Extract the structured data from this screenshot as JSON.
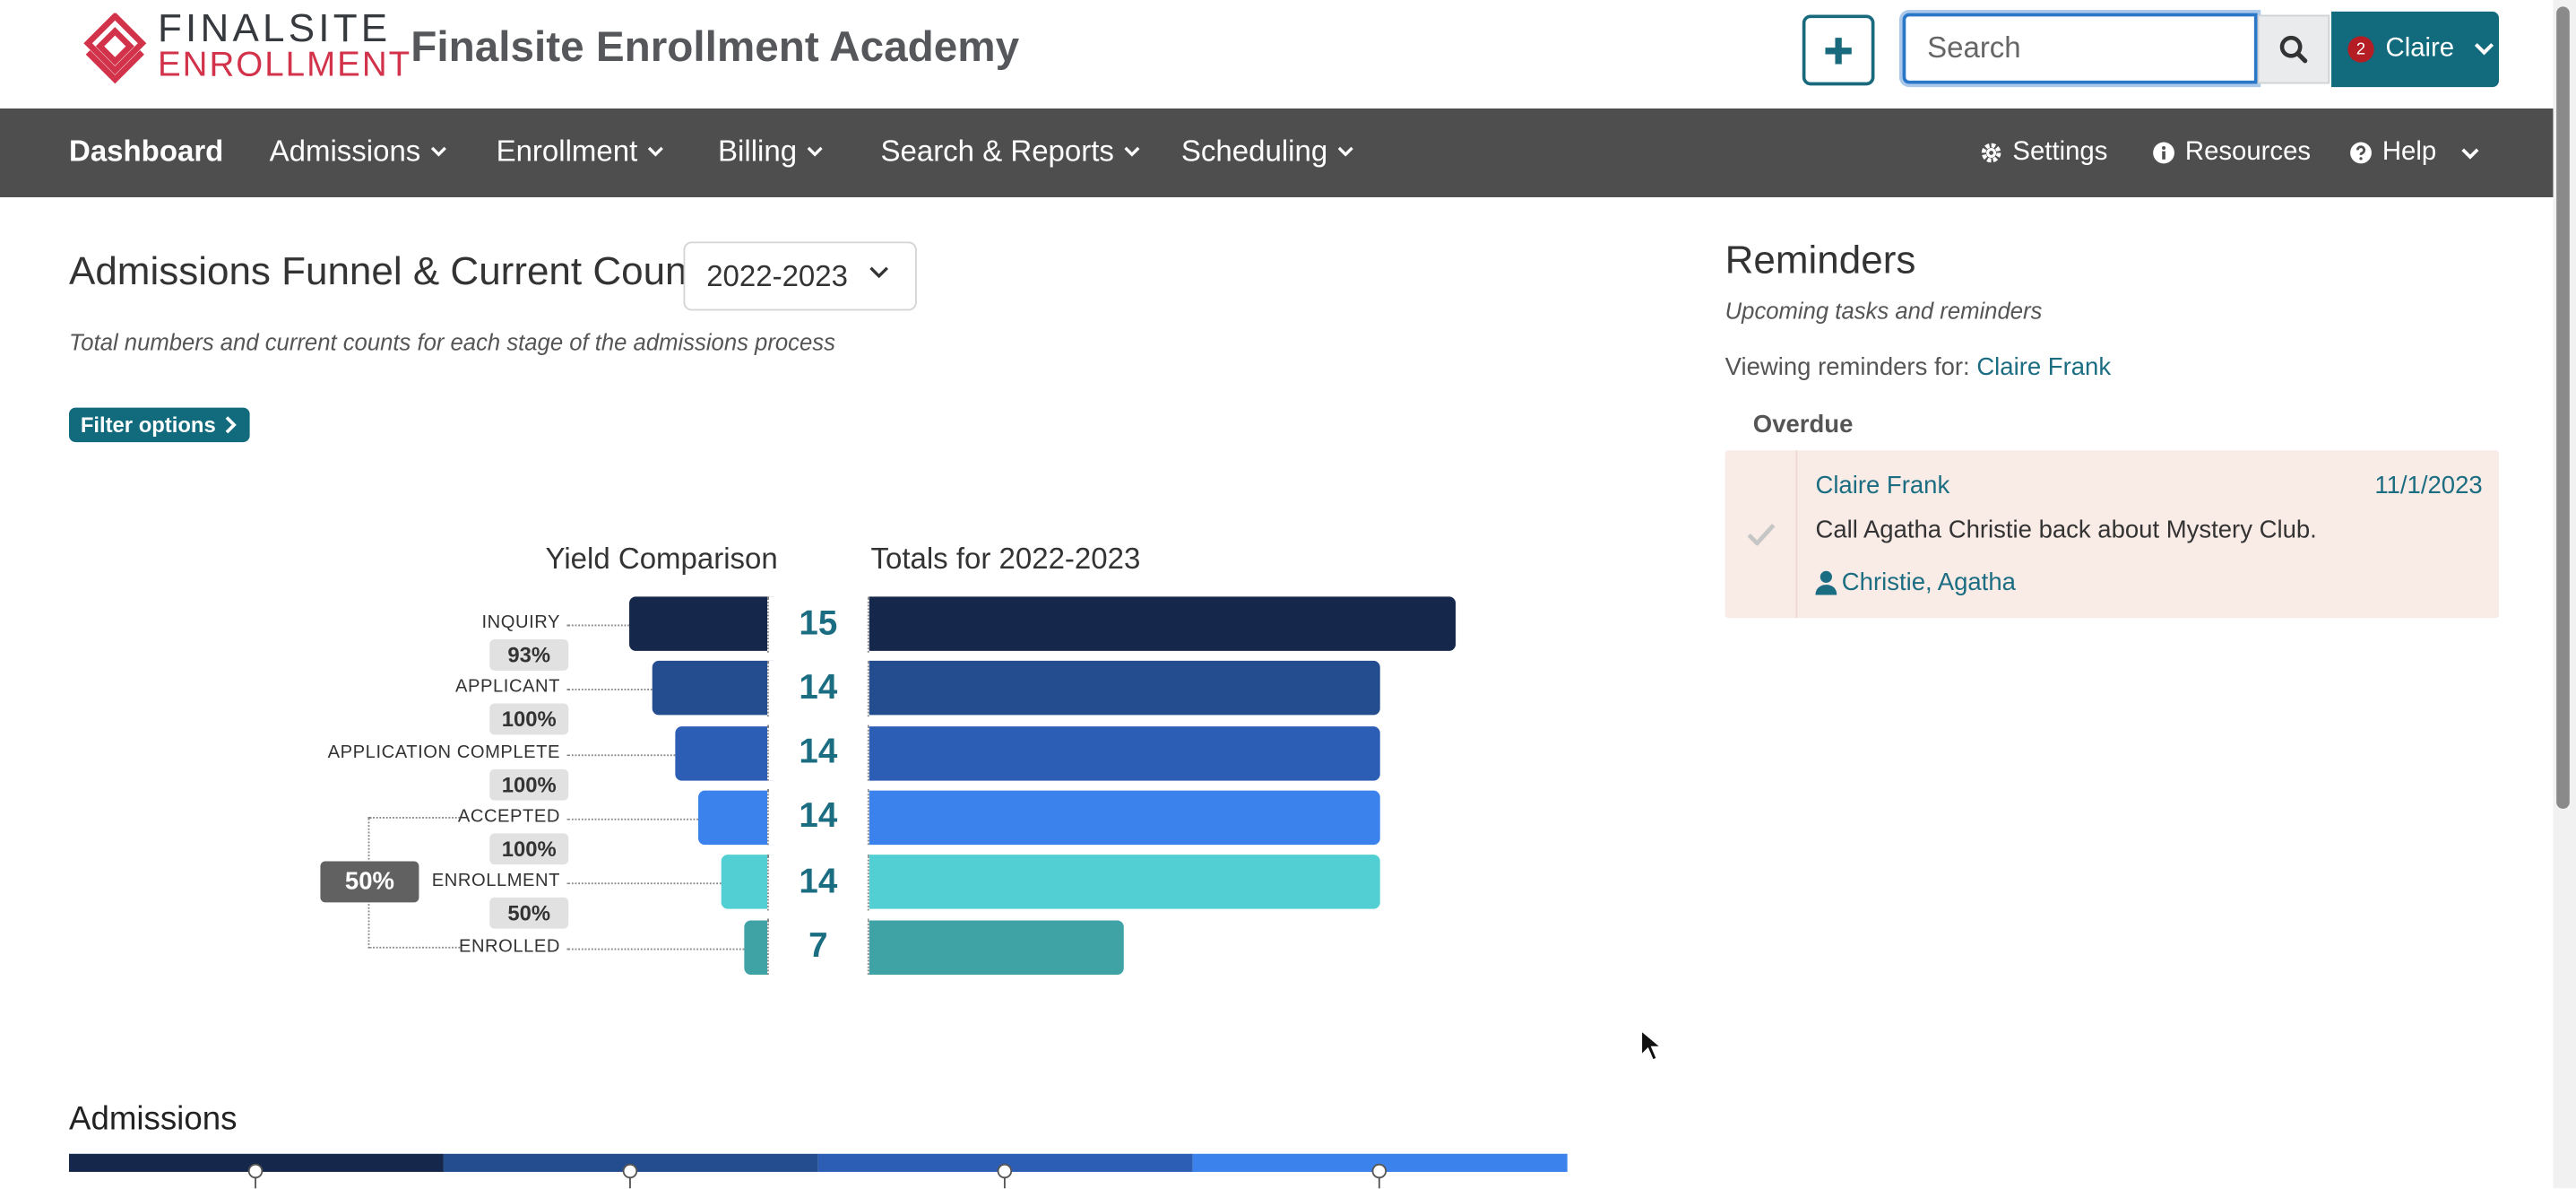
{
  "header": {
    "logo_line1": "FINALSITE",
    "logo_line2": "ENROLLMENT",
    "app_title": "Finalsite Enrollment Academy",
    "search_placeholder": "Search",
    "notifications_count": "2",
    "user_name": "Claire"
  },
  "nav": {
    "items": [
      {
        "label": "Dashboard"
      },
      {
        "label": "Admissions"
      },
      {
        "label": "Enrollment"
      },
      {
        "label": "Billing"
      },
      {
        "label": "Search & Reports"
      },
      {
        "label": "Scheduling"
      }
    ],
    "settings": "Settings",
    "resources": "Resources",
    "help": "Help"
  },
  "funnel_section": {
    "title": "Admissions Funnel & Current Counts",
    "year": "2022-2023",
    "subtitle": "Total numbers and current counts for each stage of the admissions process",
    "filter_label": "Filter options",
    "yield_heading": "Yield Comparison",
    "totals_heading": "Totals for 2022-2023",
    "yield_overall": "50%"
  },
  "chart_data": {
    "type": "bar",
    "categories": [
      "INQUIRY",
      "APPLICANT",
      "APPLICATION COMPLETE",
      "ACCEPTED",
      "ENROLLMENT",
      "ENROLLED"
    ],
    "values": [
      15,
      14,
      14,
      14,
      14,
      7
    ],
    "value_labels": [
      "15",
      "14",
      "14",
      "14",
      "14",
      "7"
    ],
    "conversion_rates": [
      "93%",
      "100%",
      "100%",
      "100%",
      "50%"
    ],
    "colors": [
      "#15274a",
      "#244d8f",
      "#2d5eb6",
      "#3b82ec",
      "#52cfd3",
      "#3fa3a5"
    ]
  },
  "admissions": {
    "title": "Admissions",
    "stripe_colors": [
      "#15274a",
      "#244d8f",
      "#2d5eb6",
      "#3b82ec"
    ]
  },
  "reminders": {
    "title": "Reminders",
    "subtitle": "Upcoming tasks and reminders",
    "viewing_prefix": "Viewing reminders for:",
    "viewing_user": "Claire Frank",
    "overdue_label": "Overdue",
    "items": [
      {
        "assignee": "Claire Frank",
        "date": "11/1/2023",
        "text": "Call Agatha Christie back about Mystery Club.",
        "contact": "Christie, Agatha"
      }
    ]
  }
}
